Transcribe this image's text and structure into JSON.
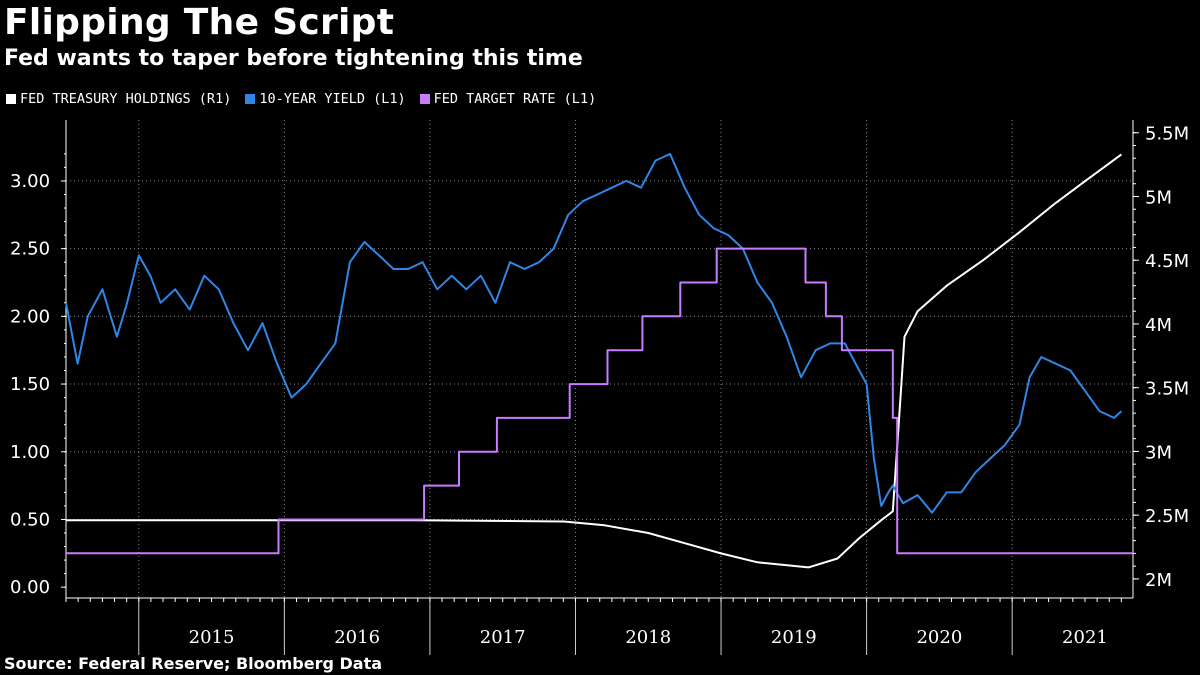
{
  "title": "Flipping The Script",
  "subtitle": "Fed wants to taper before tightening this time",
  "source": "Source: Federal Reserve; Bloomberg Data",
  "colors": {
    "holdings": "#ffffff",
    "yield": "#2f86e6",
    "target": "#c77dff"
  },
  "chart_data": {
    "type": "line",
    "x_range": [
      2014.5,
      2021.83
    ],
    "y_left": {
      "range": [
        -0.08,
        3.45
      ],
      "ticks": [
        "0.00",
        "0.50",
        "1.00",
        "1.50",
        "2.00",
        "2.50",
        "3.00"
      ]
    },
    "y_right": {
      "range": [
        1.85,
        5.6
      ],
      "ticks": [
        "2M",
        "2.5M",
        "3M",
        "3.5M",
        "4M",
        "4.5M",
        "5M",
        "5.5M"
      ]
    },
    "x_categories": [
      "2015",
      "2016",
      "2017",
      "2018",
      "2019",
      "2020",
      "2021"
    ],
    "legend": [
      {
        "label": "FED TREASURY HOLDINGS (R1)",
        "series": "holdings"
      },
      {
        "label": "10-YEAR YIELD (L1)",
        "series": "yield"
      },
      {
        "label": "FED TARGET RATE (L1)",
        "series": "target"
      }
    ],
    "series": [
      {
        "name": "FED TREASURY HOLDINGS (R1)",
        "axis": "right",
        "x": [
          2014.5,
          2016.9,
          2017.92,
          2018.2,
          2018.5,
          2018.75,
          2019.0,
          2019.25,
          2019.6,
          2019.8,
          2019.95,
          2020.1,
          2020.18,
          2020.22,
          2020.26,
          2020.35,
          2020.55,
          2020.8,
          2021.05,
          2021.3,
          2021.5,
          2021.75
        ],
        "values": [
          2.46,
          2.46,
          2.45,
          2.42,
          2.36,
          2.28,
          2.2,
          2.13,
          2.09,
          2.16,
          2.32,
          2.46,
          2.53,
          3.2,
          3.9,
          4.1,
          4.3,
          4.5,
          4.72,
          4.95,
          5.12,
          5.33
        ]
      },
      {
        "name": "10-YEAR YIELD (L1)",
        "axis": "left",
        "x": [
          2014.5,
          2014.58,
          2014.65,
          2014.75,
          2014.85,
          2014.92,
          2015.0,
          2015.08,
          2015.15,
          2015.25,
          2015.35,
          2015.45,
          2015.55,
          2015.65,
          2015.75,
          2015.85,
          2015.95,
          2016.05,
          2016.15,
          2016.25,
          2016.35,
          2016.45,
          2016.55,
          2016.65,
          2016.75,
          2016.85,
          2016.95,
          2017.05,
          2017.15,
          2017.25,
          2017.35,
          2017.45,
          2017.55,
          2017.65,
          2017.75,
          2017.85,
          2017.95,
          2018.05,
          2018.15,
          2018.25,
          2018.35,
          2018.45,
          2018.55,
          2018.65,
          2018.75,
          2018.85,
          2018.95,
          2019.05,
          2019.15,
          2019.25,
          2019.35,
          2019.45,
          2019.55,
          2019.65,
          2019.75,
          2019.85,
          2019.95,
          2020.0,
          2020.05,
          2020.1,
          2020.15,
          2020.18,
          2020.25,
          2020.35,
          2020.45,
          2020.55,
          2020.65,
          2020.75,
          2020.85,
          2020.95,
          2021.05,
          2021.12,
          2021.2,
          2021.3,
          2021.4,
          2021.5,
          2021.6,
          2021.7,
          2021.75
        ],
        "values": [
          2.1,
          1.65,
          2.0,
          2.2,
          1.85,
          2.1,
          2.45,
          2.3,
          2.1,
          2.2,
          2.05,
          2.3,
          2.2,
          1.95,
          1.75,
          1.95,
          1.65,
          1.4,
          1.5,
          1.65,
          1.8,
          2.4,
          2.55,
          2.45,
          2.35,
          2.35,
          2.4,
          2.2,
          2.3,
          2.2,
          2.3,
          2.1,
          2.4,
          2.35,
          2.4,
          2.5,
          2.75,
          2.85,
          2.9,
          2.95,
          3.0,
          2.95,
          3.15,
          3.2,
          2.95,
          2.75,
          2.65,
          2.6,
          2.5,
          2.25,
          2.1,
          1.85,
          1.55,
          1.75,
          1.8,
          1.8,
          1.6,
          1.5,
          0.95,
          0.6,
          0.7,
          0.75,
          0.62,
          0.68,
          0.55,
          0.7,
          0.7,
          0.85,
          0.95,
          1.05,
          1.2,
          1.55,
          1.7,
          1.65,
          1.6,
          1.45,
          1.3,
          1.25,
          1.3
        ]
      },
      {
        "name": "FED TARGET RATE (L1)",
        "axis": "left",
        "step": true,
        "x": [
          2014.5,
          2015.96,
          2016.96,
          2017.2,
          2017.46,
          2017.96,
          2018.22,
          2018.46,
          2018.72,
          2018.97,
          2019.58,
          2019.72,
          2019.83,
          2020.18,
          2020.21,
          2021.83
        ],
        "values": [
          0.25,
          0.5,
          0.75,
          1.0,
          1.25,
          1.5,
          1.75,
          2.0,
          2.25,
          2.5,
          2.25,
          2.0,
          1.75,
          1.25,
          0.25,
          0.25
        ]
      }
    ]
  }
}
